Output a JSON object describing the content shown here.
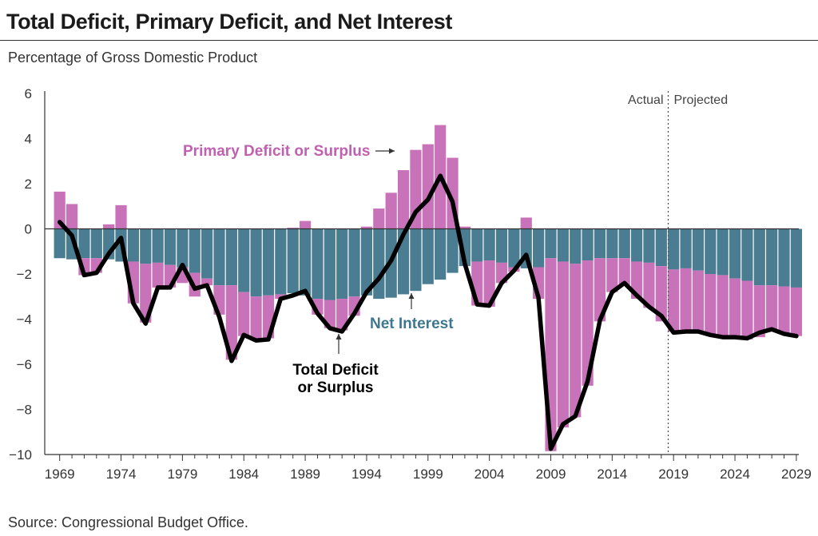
{
  "header": {
    "title": "Total Deficit, Primary Deficit, and Net Interest",
    "subtitle": "Percentage of Gross Domestic Product"
  },
  "footer": {
    "source": "Source: Congressional Budget Office."
  },
  "colors": {
    "primary": "#c872b9",
    "interest": "#4a7d91",
    "total_line": "#000000",
    "primary_label": "#c060b0",
    "interest_label": "#3f7790"
  },
  "chart_data": {
    "type": "bar",
    "title": "Total Deficit, Primary Deficit, and Net Interest",
    "ylabel": "Percentage of Gross Domestic Product",
    "xlabel": "",
    "ylim": [
      -10,
      6
    ],
    "yticks": [
      "6",
      "4",
      "2",
      "0",
      "−2",
      "−4",
      "−6",
      "−8",
      "−10"
    ],
    "ytick_values": [
      6,
      4,
      2,
      0,
      -2,
      -4,
      -6,
      -8,
      -10
    ],
    "xtick_labels": [
      "1969",
      "1974",
      "1979",
      "1984",
      "1989",
      "1994",
      "1999",
      "2004",
      "2009",
      "2014",
      "2019",
      "2024",
      "2029"
    ],
    "first_year": 1969,
    "last_actual_year": 2018,
    "divider_labels": {
      "actual": "Actual",
      "projected": "Projected"
    },
    "annotations": {
      "primary": "Primary Deficit or Surplus",
      "interest": "Net Interest",
      "total_line1": "Total Deficit",
      "total_line2": "or Surplus"
    },
    "years": [
      1969,
      1970,
      1971,
      1972,
      1973,
      1974,
      1975,
      1976,
      1977,
      1978,
      1979,
      1980,
      1981,
      1982,
      1983,
      1984,
      1985,
      1986,
      1987,
      1988,
      1989,
      1990,
      1991,
      1992,
      1993,
      1994,
      1995,
      1996,
      1997,
      1998,
      1999,
      2000,
      2001,
      2002,
      2003,
      2004,
      2005,
      2006,
      2007,
      2008,
      2009,
      2010,
      2011,
      2012,
      2013,
      2014,
      2015,
      2016,
      2017,
      2018,
      2019,
      2020,
      2021,
      2022,
      2023,
      2024,
      2025,
      2026,
      2027,
      2028,
      2029
    ],
    "series": [
      {
        "name": "Primary Deficit or Surplus",
        "values": [
          1.65,
          1.1,
          -0.75,
          -0.65,
          0.2,
          1.05,
          -1.85,
          -2.6,
          -1.1,
          -1.0,
          -0.7,
          -1.05,
          -0.3,
          -1.3,
          -3.3,
          -1.95,
          -1.9,
          -1.9,
          -0.2,
          0.05,
          0.35,
          -0.7,
          -1.25,
          -1.4,
          -0.85,
          0.1,
          0.9,
          1.6,
          2.6,
          3.5,
          3.75,
          4.6,
          3.15,
          0.1,
          -1.95,
          -2.05,
          -0.9,
          -0.2,
          0.5,
          -1.4,
          -8.55,
          -7.35,
          -6.8,
          -5.55,
          -2.8,
          -1.5,
          -1.2,
          -1.65,
          -2.0,
          -2.45,
          -2.75,
          -2.8,
          -2.7,
          -2.7,
          -2.75,
          -2.6,
          -2.6,
          -2.3,
          -1.95,
          -2.1,
          -2.15
        ]
      },
      {
        "name": "Net Interest",
        "values": [
          -1.3,
          -1.35,
          -1.3,
          -1.3,
          -1.35,
          -1.45,
          -1.45,
          -1.55,
          -1.5,
          -1.6,
          -1.7,
          -1.95,
          -2.2,
          -2.5,
          -2.5,
          -2.8,
          -3.0,
          -2.95,
          -2.9,
          -2.85,
          -2.95,
          -3.1,
          -3.15,
          -3.1,
          -3.0,
          -2.95,
          -3.1,
          -3.05,
          -2.9,
          -2.75,
          -2.45,
          -2.25,
          -1.95,
          -1.65,
          -1.45,
          -1.4,
          -1.5,
          -1.7,
          -1.75,
          -1.7,
          -1.3,
          -1.45,
          -1.55,
          -1.4,
          -1.3,
          -1.3,
          -1.3,
          -1.45,
          -1.5,
          -1.65,
          -1.8,
          -1.75,
          -1.85,
          -2.0,
          -2.05,
          -2.2,
          -2.3,
          -2.5,
          -2.5,
          -2.55,
          -2.6
        ]
      },
      {
        "name": "Total Deficit or Surplus",
        "values": [
          0.3,
          -0.3,
          -2.05,
          -1.95,
          -1.1,
          -0.4,
          -3.3,
          -4.2,
          -2.6,
          -2.6,
          -1.6,
          -2.65,
          -2.5,
          -3.9,
          -5.85,
          -4.7,
          -4.95,
          -4.9,
          -3.1,
          -2.95,
          -2.75,
          -3.75,
          -4.4,
          -4.55,
          -3.75,
          -2.8,
          -2.2,
          -1.4,
          -0.25,
          0.75,
          1.3,
          2.35,
          1.2,
          -1.55,
          -3.35,
          -3.4,
          -2.4,
          -1.85,
          -1.15,
          -3.05,
          -9.75,
          -8.65,
          -8.3,
          -6.75,
          -4.05,
          -2.8,
          -2.4,
          -2.95,
          -3.45,
          -3.85,
          -4.6,
          -4.55,
          -4.55,
          -4.7,
          -4.8,
          -4.8,
          -4.85,
          -4.6,
          -4.45,
          -4.65,
          -4.75
        ]
      }
    ]
  }
}
